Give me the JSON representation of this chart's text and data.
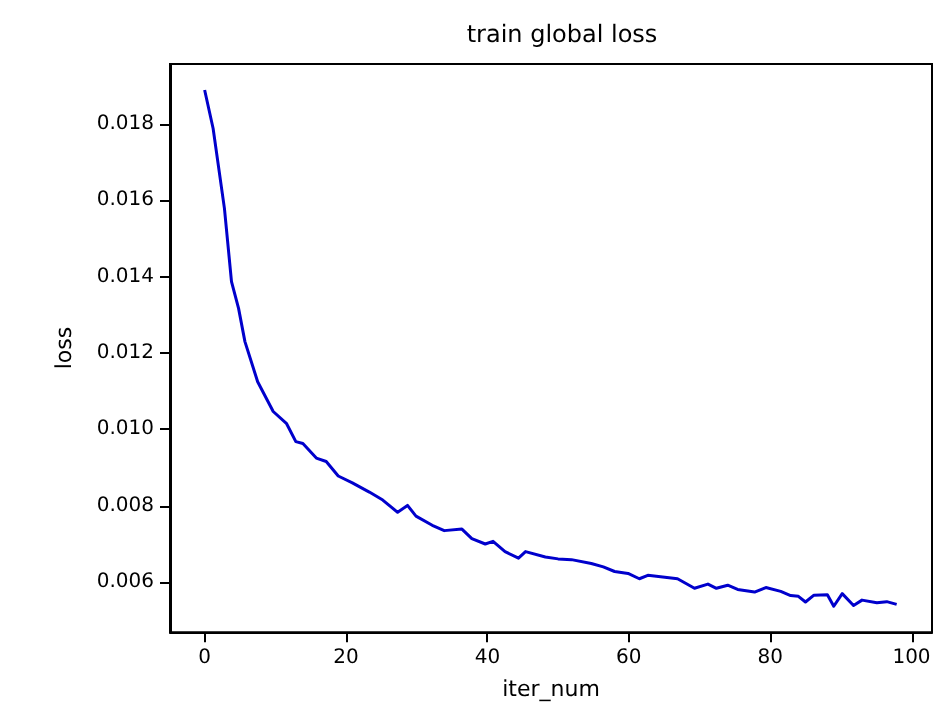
{
  "chart_data": {
    "type": "line",
    "title": "train global loss",
    "xlabel": "iter_num",
    "ylabel": "loss",
    "x": [
      0,
      1.2,
      2.8,
      3.8,
      4.8,
      5.7,
      7.5,
      9.7,
      11.6,
      12.9,
      13.9,
      15.8,
      17.2,
      18.9,
      20.9,
      23.3,
      25.2,
      27.3,
      28.7,
      29.9,
      32.2,
      33.9,
      36.4,
      37.8,
      39.7,
      40.8,
      42.5,
      44.4,
      45.4,
      48.2,
      50,
      51.9,
      54.7,
      56.4,
      58,
      59.9,
      61.5,
      62.7,
      66.9,
      69.3,
      71.2,
      72.4,
      74,
      75.4,
      77.8,
      79.4,
      81.5,
      82.9,
      84,
      85,
      86.2,
      88.1,
      89,
      90.2,
      91.8,
      93,
      95.1,
      96.5,
      97.9
    ],
    "series": [
      {
        "color": "#0000cc",
        "values": [
          0.01889,
          0.01788,
          0.01579,
          0.01387,
          0.01317,
          0.0123,
          0.01125,
          0.01047,
          0.01015,
          0.00968,
          0.00963,
          0.00925,
          0.00916,
          0.00878,
          0.0086,
          0.00836,
          0.00815,
          0.00783,
          0.00801,
          0.00773,
          0.00749,
          0.00735,
          0.00739,
          0.00714,
          0.007,
          0.00707,
          0.0068,
          0.00663,
          0.0068,
          0.00666,
          0.00661,
          0.00659,
          0.00649,
          0.0064,
          0.00628,
          0.00623,
          0.00609,
          0.00618,
          0.00609,
          0.00584,
          0.00595,
          0.00584,
          0.00592,
          0.00581,
          0.00574,
          0.00586,
          0.00576,
          0.00565,
          0.00563,
          0.00548,
          0.00566,
          0.00567,
          0.00537,
          0.0057,
          0.00539,
          0.00553,
          0.00546,
          0.00549,
          0.00542
        ]
      }
    ],
    "xlim": [
      -4.9,
      102.9
    ],
    "xticks": [
      0,
      20,
      40,
      60,
      80,
      100
    ],
    "ylim": [
      0.00469,
      0.01957
    ],
    "yticks": [
      0.006,
      0.008,
      {
        "value": 0.01,
        "label": "0.010"
      },
      0.012,
      0.014,
      0.016,
      0.018
    ],
    "grid": false,
    "marker": "none",
    "line_style": "solid"
  }
}
